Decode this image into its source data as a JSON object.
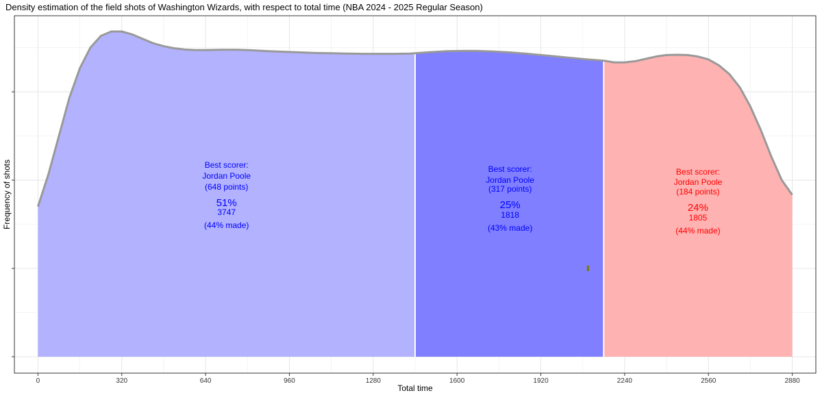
{
  "chart_data": {
    "type": "area",
    "title": "Density estimation of the field shots of Washington Wizards, with respect to total time (NBA 2024 - 2025 Regular Season)",
    "xlabel": "Total time",
    "ylabel": "Frequency of shots",
    "xlim": [
      -90,
      2970
    ],
    "ylim": [
      0,
      1.1
    ],
    "x_ticks": [
      0,
      320,
      640,
      960,
      1280,
      1600,
      1920,
      2240,
      2560,
      2880
    ],
    "x_tick_labels": [
      "0",
      "320",
      "640",
      "960",
      "1280",
      "1600",
      "1920",
      "2240",
      "2560",
      "2880"
    ],
    "y_ticks": [
      0,
      0.3,
      0.6,
      0.9
    ],
    "y_tick_labels": [
      "",
      "",
      "",
      ""
    ],
    "grid": true,
    "legend": "none",
    "density": {
      "x": [
        0,
        40,
        80,
        120,
        160,
        200,
        240,
        280,
        320,
        360,
        400,
        440,
        480,
        520,
        560,
        600,
        640,
        700,
        760,
        820,
        880,
        940,
        1000,
        1060,
        1120,
        1180,
        1240,
        1300,
        1360,
        1420,
        1440,
        1500,
        1560,
        1620,
        1680,
        1740,
        1800,
        1860,
        1920,
        1980,
        2040,
        2100,
        2160,
        2200,
        2240,
        2280,
        2320,
        2360,
        2400,
        2440,
        2480,
        2520,
        2560,
        2600,
        2640,
        2680,
        2720,
        2760,
        2800,
        2840,
        2880
      ],
      "y": [
        0.51,
        0.62,
        0.75,
        0.88,
        0.98,
        1.05,
        1.09,
        1.105,
        1.105,
        1.095,
        1.08,
        1.065,
        1.055,
        1.048,
        1.044,
        1.042,
        1.042,
        1.043,
        1.043,
        1.041,
        1.038,
        1.036,
        1.034,
        1.032,
        1.031,
        1.03,
        1.029,
        1.029,
        1.029,
        1.03,
        1.031,
        1.035,
        1.038,
        1.039,
        1.039,
        1.037,
        1.034,
        1.03,
        1.025,
        1.02,
        1.015,
        1.01,
        1.006,
        1.0,
        1.0,
        1.004,
        1.012,
        1.02,
        1.025,
        1.026,
        1.025,
        1.02,
        1.01,
        0.99,
        0.96,
        0.915,
        0.85,
        0.77,
        0.68,
        0.6,
        0.55
      ]
    },
    "segments": [
      {
        "x_start": 0,
        "x_end": 1440,
        "color": "#b2b2ff",
        "label_color": "#0000ff",
        "best_scorer_label": "Best scorer:",
        "player": "Jordan Poole",
        "points": "(648 points)",
        "percent": "51%",
        "shots": "3747",
        "made": "(44% made)"
      },
      {
        "x_start": 1440,
        "x_end": 2160,
        "color": "#7f7fff",
        "label_color": "#0000ff",
        "best_scorer_label": "Best scorer:",
        "player": "Jordan Poole",
        "points": "(317 points)",
        "percent": "25%",
        "shots": "1818",
        "made": "(43% made)"
      },
      {
        "x_start": 2160,
        "x_end": 2880,
        "color": "#ffb2b2",
        "label_color": "#ff0000",
        "best_scorer_label": "Best scorer:",
        "player": "Jordan Poole",
        "points": "(184 points)",
        "percent": "24%",
        "shots": "1805",
        "made": "(44% made)"
      }
    ],
    "marker": {
      "x": 2100,
      "y": 0.3,
      "color": "#7a7a00"
    },
    "colors": {
      "outline": "#999999",
      "divider": "#ffffff",
      "grid": "#e5e5e5",
      "panel_border": "#333333"
    }
  }
}
